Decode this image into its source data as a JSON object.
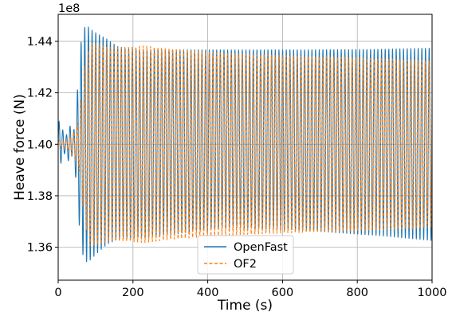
{
  "chart_data": {
    "type": "line",
    "title": "",
    "xlabel": "Time (s)",
    "ylabel": "Heave force (N)",
    "y_offset_label": "1e8",
    "y_scale_factor": 100000000,
    "xlim": [
      0,
      1000
    ],
    "ylim": [
      1.3472,
      1.4505
    ],
    "xticks": [
      0,
      200,
      400,
      600,
      800,
      1000
    ],
    "xtick_labels": [
      "0",
      "200",
      "400",
      "600",
      "800",
      "1000"
    ],
    "yticks": [
      1.36,
      1.38,
      1.4,
      1.42,
      1.44
    ],
    "ytick_labels": [
      "1.36",
      "1.38",
      "1.40",
      "1.42",
      "1.44"
    ],
    "grid": true,
    "legend_position": "bottom-center",
    "wave_period_s": 9.8,
    "series": [
      {
        "name": "OpenFast",
        "color": "#1f77b4",
        "dash": "solid",
        "center": 1.4,
        "envelope_t": [
          0,
          10,
          20,
          30,
          40,
          50,
          60,
          70,
          80,
          90,
          100,
          130,
          160,
          200,
          300,
          450,
          650,
          850,
          1000
        ],
        "envelope_upper": [
          1.4095,
          1.4065,
          1.4025,
          1.408,
          1.4028,
          1.418,
          1.439,
          1.4455,
          1.4458,
          1.4445,
          1.4435,
          1.441,
          1.438,
          1.437,
          1.4368,
          1.4368,
          1.4368,
          1.437,
          1.4375
        ],
        "envelope_lower": [
          1.3905,
          1.3935,
          1.3975,
          1.392,
          1.3972,
          1.382,
          1.361,
          1.3545,
          1.3542,
          1.3555,
          1.357,
          1.361,
          1.363,
          1.3635,
          1.3648,
          1.3676,
          1.3665,
          1.3645,
          1.3625
        ]
      },
      {
        "name": "OF2",
        "color": "#ff7f0e",
        "dash": "dashed",
        "center": 1.4,
        "envelope_t": [
          0,
          20,
          40,
          55,
          70,
          85,
          100,
          130,
          160,
          200,
          230,
          300,
          450,
          650,
          850,
          1000
        ],
        "envelope_upper": [
          1.4015,
          1.4015,
          1.4045,
          1.409,
          1.43,
          1.4395,
          1.4395,
          1.438,
          1.4378,
          1.438,
          1.4385,
          1.4372,
          1.4355,
          1.4345,
          1.4335,
          1.4325
        ],
        "envelope_lower": [
          1.3985,
          1.3985,
          1.3955,
          1.391,
          1.37,
          1.3605,
          1.3605,
          1.362,
          1.3622,
          1.362,
          1.3615,
          1.3628,
          1.3645,
          1.3655,
          1.3665,
          1.3675
        ]
      }
    ]
  }
}
